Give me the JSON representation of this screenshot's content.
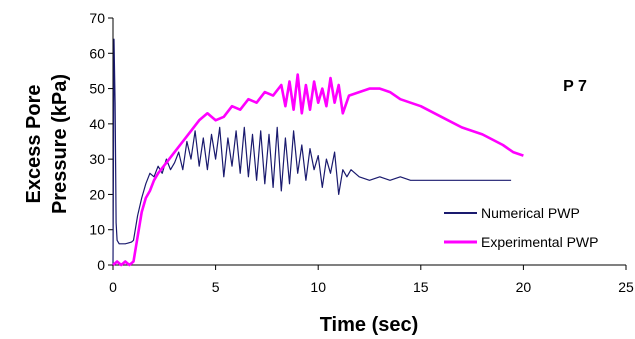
{
  "chart_data": {
    "type": "line",
    "title": "",
    "annotation": "P 7",
    "xlabel": "Time (sec)",
    "ylabel_lines": [
      "Excess Pore",
      "Pressure (kPa)"
    ],
    "xlim": [
      0,
      25
    ],
    "ylim": [
      0,
      70
    ],
    "xticks": [
      0,
      5,
      10,
      15,
      20,
      25
    ],
    "yticks": [
      0,
      10,
      20,
      30,
      40,
      50,
      60,
      70
    ],
    "grid": false,
    "legend_position": "bottom-right",
    "series": [
      {
        "name": "Numerical PWP",
        "color": "#1a1a6e",
        "points": [
          [
            0.0,
            0
          ],
          [
            0.05,
            64
          ],
          [
            0.1,
            46
          ],
          [
            0.15,
            12
          ],
          [
            0.2,
            7
          ],
          [
            0.3,
            6
          ],
          [
            0.6,
            6
          ],
          [
            0.9,
            6.5
          ],
          [
            1.0,
            7
          ],
          [
            1.2,
            14
          ],
          [
            1.4,
            19
          ],
          [
            1.6,
            23
          ],
          [
            1.8,
            26
          ],
          [
            2.0,
            25
          ],
          [
            2.2,
            28
          ],
          [
            2.4,
            26
          ],
          [
            2.6,
            30
          ],
          [
            2.8,
            27
          ],
          [
            3.0,
            29
          ],
          [
            3.2,
            32
          ],
          [
            3.4,
            27
          ],
          [
            3.6,
            35
          ],
          [
            3.8,
            30
          ],
          [
            4.0,
            38
          ],
          [
            4.2,
            28
          ],
          [
            4.4,
            36
          ],
          [
            4.6,
            27
          ],
          [
            4.8,
            37
          ],
          [
            5.0,
            30
          ],
          [
            5.2,
            39
          ],
          [
            5.4,
            25
          ],
          [
            5.6,
            36
          ],
          [
            5.8,
            28
          ],
          [
            6.0,
            38
          ],
          [
            6.2,
            26
          ],
          [
            6.4,
            39
          ],
          [
            6.6,
            25
          ],
          [
            6.8,
            37
          ],
          [
            7.0,
            24
          ],
          [
            7.2,
            38
          ],
          [
            7.4,
            23
          ],
          [
            7.6,
            37
          ],
          [
            7.8,
            22
          ],
          [
            8.0,
            39
          ],
          [
            8.2,
            21
          ],
          [
            8.4,
            36
          ],
          [
            8.6,
            23
          ],
          [
            8.8,
            38
          ],
          [
            9.0,
            26
          ],
          [
            9.2,
            34
          ],
          [
            9.4,
            24
          ],
          [
            9.6,
            33
          ],
          [
            9.8,
            27
          ],
          [
            10.0,
            31
          ],
          [
            10.2,
            22
          ],
          [
            10.4,
            30
          ],
          [
            10.6,
            26
          ],
          [
            10.8,
            32
          ],
          [
            11.0,
            20
          ],
          [
            11.2,
            27
          ],
          [
            11.4,
            25
          ],
          [
            11.6,
            27
          ],
          [
            12.0,
            25
          ],
          [
            12.5,
            24
          ],
          [
            13.0,
            25
          ],
          [
            13.5,
            24
          ],
          [
            14.0,
            25
          ],
          [
            14.5,
            24
          ],
          [
            15.0,
            24
          ],
          [
            16.0,
            24
          ],
          [
            17.0,
            24
          ],
          [
            18.0,
            24
          ],
          [
            19.0,
            24
          ],
          [
            19.4,
            24
          ]
        ]
      },
      {
        "name": "Experimental PWP",
        "color": "#ff00ff",
        "points": [
          [
            0.0,
            0
          ],
          [
            0.2,
            1
          ],
          [
            0.4,
            0
          ],
          [
            0.6,
            1
          ],
          [
            0.8,
            0
          ],
          [
            1.0,
            1
          ],
          [
            1.2,
            8
          ],
          [
            1.4,
            15
          ],
          [
            1.6,
            19
          ],
          [
            1.8,
            21
          ],
          [
            2.0,
            24
          ],
          [
            2.2,
            26
          ],
          [
            2.6,
            29
          ],
          [
            3.0,
            32
          ],
          [
            3.4,
            35
          ],
          [
            3.8,
            38
          ],
          [
            4.2,
            41
          ],
          [
            4.6,
            43
          ],
          [
            5.0,
            41
          ],
          [
            5.4,
            42
          ],
          [
            5.8,
            45
          ],
          [
            6.2,
            44
          ],
          [
            6.6,
            47
          ],
          [
            7.0,
            46
          ],
          [
            7.4,
            49
          ],
          [
            7.8,
            48
          ],
          [
            8.2,
            51
          ],
          [
            8.4,
            45
          ],
          [
            8.6,
            52
          ],
          [
            8.8,
            44
          ],
          [
            9.0,
            54
          ],
          [
            9.2,
            43
          ],
          [
            9.4,
            51
          ],
          [
            9.6,
            44
          ],
          [
            9.8,
            52
          ],
          [
            10.0,
            46
          ],
          [
            10.2,
            50
          ],
          [
            10.4,
            45
          ],
          [
            10.6,
            53
          ],
          [
            10.8,
            46
          ],
          [
            11.0,
            51
          ],
          [
            11.2,
            43
          ],
          [
            11.5,
            48
          ],
          [
            12.0,
            49
          ],
          [
            12.5,
            50
          ],
          [
            13.0,
            50
          ],
          [
            13.5,
            49
          ],
          [
            14.0,
            47
          ],
          [
            14.5,
            46
          ],
          [
            15.0,
            45
          ],
          [
            16.0,
            42
          ],
          [
            17.0,
            39
          ],
          [
            18.0,
            37
          ],
          [
            19.0,
            34
          ],
          [
            19.5,
            32
          ],
          [
            20.0,
            31
          ]
        ]
      }
    ]
  }
}
